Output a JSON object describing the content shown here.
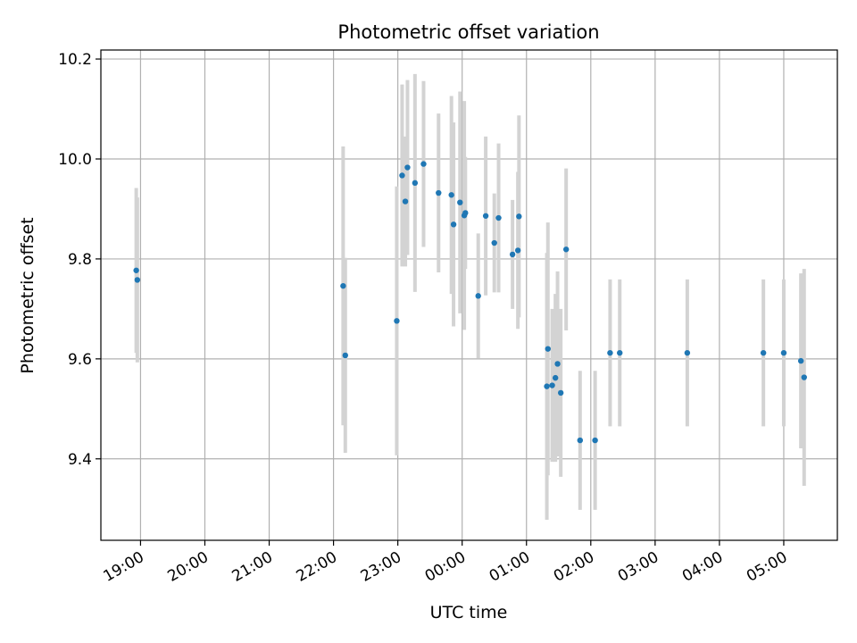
{
  "chart_data": {
    "type": "scatter",
    "title": "Photometric offset variation",
    "xlabel": "UTC time",
    "ylabel": "Photometric offset",
    "x_unit": "UTC time (HH:MM, night spanning midnight)",
    "xlim": [
      "18:23",
      "05:50"
    ],
    "ylim": [
      9.237,
      10.218
    ],
    "grid": true,
    "x_ticks": [
      "19:00",
      "20:00",
      "21:00",
      "22:00",
      "23:00",
      "00:00",
      "01:00",
      "02:00",
      "03:00",
      "04:00",
      "05:00"
    ],
    "y_ticks": [
      "9.4",
      "9.6",
      "9.8",
      "10.0",
      "10.2"
    ],
    "colors": {
      "point": "#1f77b4",
      "errorbar": "#d3d3d3",
      "grid": "#b0b0b0"
    },
    "points": [
      {
        "x": "18:56",
        "y": 9.777,
        "ylo": 9.612,
        "yhi": 9.942
      },
      {
        "x": "18:57",
        "y": 9.758,
        "ylo": 9.593,
        "yhi": 9.923
      },
      {
        "x": "22:09",
        "y": 9.746,
        "ylo": 9.467,
        "yhi": 10.025
      },
      {
        "x": "22:11",
        "y": 9.607,
        "ylo": 9.412,
        "yhi": 9.802
      },
      {
        "x": "22:59",
        "y": 9.676,
        "ylo": 9.407,
        "yhi": 9.945
      },
      {
        "x": "23:04",
        "y": 9.967,
        "ylo": 9.785,
        "yhi": 10.149
      },
      {
        "x": "23:07",
        "y": 9.915,
        "ylo": 9.785,
        "yhi": 10.045
      },
      {
        "x": "23:09",
        "y": 9.983,
        "ylo": 9.808,
        "yhi": 10.158
      },
      {
        "x": "23:16",
        "y": 9.952,
        "ylo": 9.734,
        "yhi": 10.17
      },
      {
        "x": "23:24",
        "y": 9.99,
        "ylo": 9.824,
        "yhi": 10.156
      },
      {
        "x": "23:38",
        "y": 9.932,
        "ylo": 9.773,
        "yhi": 10.091
      },
      {
        "x": "23:50",
        "y": 9.928,
        "ylo": 9.73,
        "yhi": 10.126
      },
      {
        "x": "23:52",
        "y": 9.869,
        "ylo": 9.665,
        "yhi": 10.073
      },
      {
        "x": "23:58",
        "y": 9.913,
        "ylo": 9.691,
        "yhi": 10.135
      },
      {
        "x": "00:02",
        "y": 9.887,
        "ylo": 9.658,
        "yhi": 10.116
      },
      {
        "x": "00:03",
        "y": 9.892,
        "ylo": 9.78,
        "yhi": 10.004
      },
      {
        "x": "00:15",
        "y": 9.726,
        "ylo": 9.601,
        "yhi": 9.851
      },
      {
        "x": "00:22",
        "y": 9.886,
        "ylo": 9.727,
        "yhi": 10.045
      },
      {
        "x": "00:30",
        "y": 9.832,
        "ylo": 9.733,
        "yhi": 9.931
      },
      {
        "x": "00:34",
        "y": 9.882,
        "ylo": 9.733,
        "yhi": 10.031
      },
      {
        "x": "00:47",
        "y": 9.809,
        "ylo": 9.7,
        "yhi": 9.918
      },
      {
        "x": "00:52",
        "y": 9.817,
        "ylo": 9.66,
        "yhi": 9.974
      },
      {
        "x": "00:53",
        "y": 9.885,
        "ylo": 9.683,
        "yhi": 10.087
      },
      {
        "x": "01:19",
        "y": 9.545,
        "ylo": 9.278,
        "yhi": 9.812
      },
      {
        "x": "01:20",
        "y": 9.62,
        "ylo": 9.367,
        "yhi": 9.873
      },
      {
        "x": "01:24",
        "y": 9.547,
        "ylo": 9.394,
        "yhi": 9.7
      },
      {
        "x": "01:27",
        "y": 9.562,
        "ylo": 9.394,
        "yhi": 9.73
      },
      {
        "x": "01:29",
        "y": 9.59,
        "ylo": 9.405,
        "yhi": 9.775
      },
      {
        "x": "01:32",
        "y": 9.532,
        "ylo": 9.364,
        "yhi": 9.7
      },
      {
        "x": "01:37",
        "y": 9.819,
        "ylo": 9.657,
        "yhi": 9.981
      },
      {
        "x": "01:50",
        "y": 9.437,
        "ylo": 9.298,
        "yhi": 9.576
      },
      {
        "x": "02:04",
        "y": 9.437,
        "ylo": 9.298,
        "yhi": 9.576
      },
      {
        "x": "02:18",
        "y": 9.612,
        "ylo": 9.465,
        "yhi": 9.759
      },
      {
        "x": "02:27",
        "y": 9.612,
        "ylo": 9.465,
        "yhi": 9.759
      },
      {
        "x": "03:30",
        "y": 9.612,
        "ylo": 9.465,
        "yhi": 9.759
      },
      {
        "x": "04:41",
        "y": 9.612,
        "ylo": 9.465,
        "yhi": 9.759
      },
      {
        "x": "05:00",
        "y": 9.612,
        "ylo": 9.465,
        "yhi": 9.759
      },
      {
        "x": "05:16",
        "y": 9.596,
        "ylo": 9.421,
        "yhi": 9.771
      },
      {
        "x": "05:19",
        "y": 9.563,
        "ylo": 9.346,
        "yhi": 9.78
      }
    ]
  }
}
